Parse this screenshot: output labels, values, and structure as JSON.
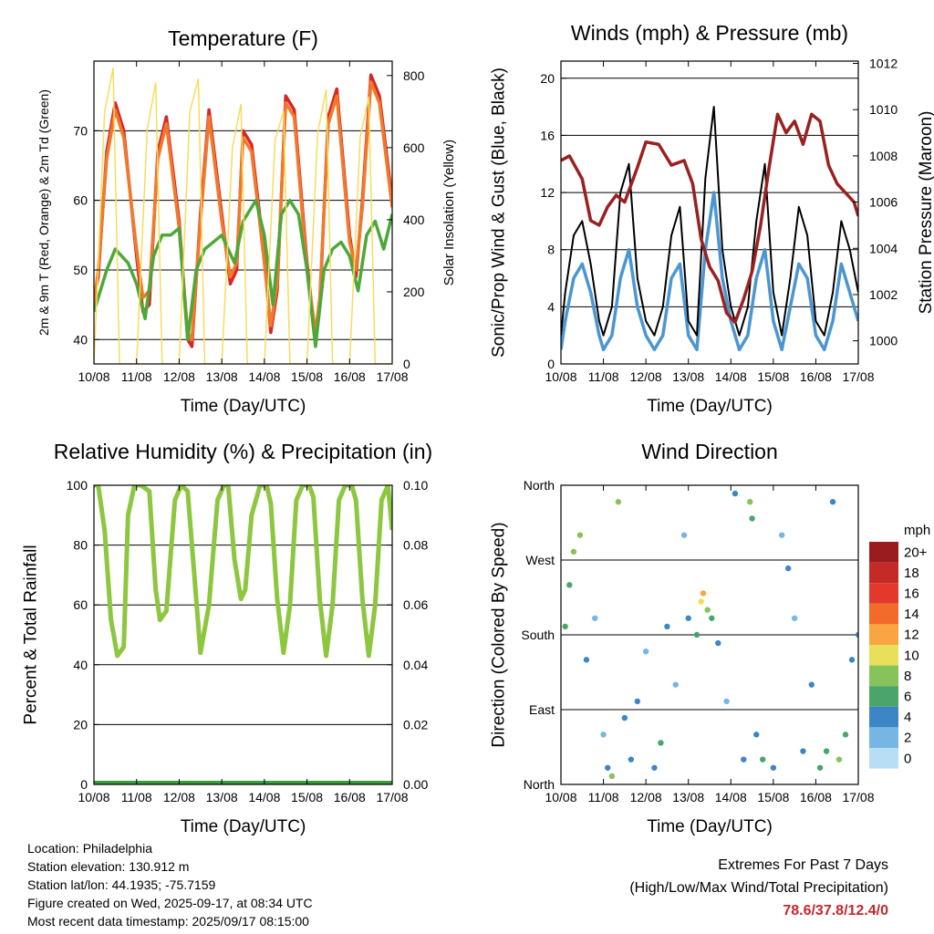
{
  "chart_data": [
    {
      "type": "line",
      "title": "Temperature (F)",
      "xlabel": "Time (Day/UTC)",
      "ylabel": "2m & 9m T (Red, Orange) & 2m Td (Green)",
      "ylabel_right": "Solar Insolation (Yellow)",
      "x_ticks": [
        "10/08",
        "11/08",
        "12/08",
        "13/08",
        "14/08",
        "15/08",
        "16/08",
        "17/08"
      ],
      "xlim": [
        0,
        7
      ],
      "ylim": [
        36.5,
        80
      ],
      "y_ticks": [
        40,
        50,
        60,
        70
      ],
      "ylim_right": [
        0,
        840
      ],
      "y_ticks_right": [
        0,
        200,
        400,
        600,
        800
      ],
      "grid": true,
      "series": [
        {
          "color": "#d92626",
          "x": [
            0,
            0.1,
            0.3,
            0.5,
            0.7,
            1.0,
            1.15,
            1.3,
            1.5,
            1.7,
            2.0,
            2.2,
            2.3,
            2.5,
            2.7,
            3.0,
            3.2,
            3.35,
            3.5,
            3.7,
            4.0,
            4.15,
            4.3,
            4.5,
            4.7,
            5.0,
            5.2,
            5.3,
            5.5,
            5.7,
            6.0,
            6.15,
            6.3,
            6.5,
            6.7,
            7.0
          ],
          "values": [
            46,
            49,
            67,
            74,
            70,
            52,
            44,
            45,
            67,
            72,
            57,
            40,
            39,
            58,
            73,
            58,
            48,
            50,
            70,
            68,
            52,
            41,
            47,
            75,
            73,
            51,
            40,
            45,
            72,
            76,
            55,
            49,
            60,
            78,
            75,
            60
          ]
        },
        {
          "color": "#f07a2a",
          "x": [
            0,
            0.1,
            0.3,
            0.5,
            0.7,
            1.0,
            1.15,
            1.3,
            1.5,
            1.7,
            2.0,
            2.2,
            2.3,
            2.5,
            2.7,
            3.0,
            3.2,
            3.35,
            3.5,
            3.7,
            4.0,
            4.15,
            4.3,
            4.5,
            4.7,
            5.0,
            5.2,
            5.3,
            5.5,
            5.7,
            6.0,
            6.15,
            6.3,
            6.5,
            6.7,
            7.0
          ],
          "values": [
            45,
            50,
            66,
            73,
            69,
            53,
            46,
            47,
            66,
            71,
            56,
            41,
            40,
            57,
            72,
            57,
            49,
            51,
            69,
            67,
            51,
            42,
            48,
            74,
            72,
            50,
            41,
            46,
            71,
            75,
            54,
            50,
            59,
            77,
            74,
            59
          ]
        },
        {
          "color": "#4ca839",
          "x": [
            0,
            0.3,
            0.5,
            0.8,
            1.0,
            1.2,
            1.4,
            1.6,
            1.8,
            2.0,
            2.2,
            2.4,
            2.6,
            2.8,
            3.0,
            3.3,
            3.5,
            3.8,
            4.0,
            4.2,
            4.4,
            4.6,
            4.8,
            5.0,
            5.2,
            5.4,
            5.6,
            5.8,
            6.0,
            6.2,
            6.4,
            6.6,
            6.8,
            7.0
          ],
          "values": [
            44,
            50,
            53,
            51,
            48,
            43,
            52,
            55,
            55,
            56,
            40,
            50,
            53,
            54,
            55,
            51,
            57,
            60,
            55,
            45,
            58,
            60,
            58,
            50,
            39,
            50,
            53,
            54,
            52,
            47,
            55,
            57,
            53,
            58
          ]
        },
        {
          "color": "#f7dc5a",
          "x": [
            0.0,
            0.25,
            0.45,
            0.6,
            1.0,
            1.25,
            1.45,
            1.6,
            2.0,
            2.25,
            2.45,
            2.6,
            3.0,
            3.25,
            3.45,
            3.6,
            4.0,
            4.25,
            4.45,
            4.6,
            5.0,
            5.25,
            5.45,
            5.6,
            6.0,
            6.25,
            6.45,
            6.6,
            7.0
          ],
          "values": [
            0,
            700,
            820,
            0,
            0,
            650,
            780,
            0,
            0,
            700,
            790,
            0,
            0,
            600,
            720,
            0,
            0,
            620,
            700,
            0,
            0,
            640,
            760,
            0,
            0,
            630,
            740,
            0,
            0
          ]
        }
      ]
    },
    {
      "type": "line",
      "title": "Winds (mph) & Pressure (mb)",
      "xlabel": "Time (Day/UTC)",
      "ylabel": "Sonic/Prop Wind & Gust (Blue, Black)",
      "ylabel_right": "Station Pressure (Maroon)",
      "x_ticks": [
        "10/08",
        "11/08",
        "12/08",
        "13/08",
        "14/08",
        "15/08",
        "16/08",
        "17/08"
      ],
      "xlim": [
        0,
        7
      ],
      "ylim": [
        0,
        21.2
      ],
      "y_ticks": [
        0,
        4,
        8,
        12,
        16,
        20
      ],
      "ylim_right": [
        999,
        1012.1
      ],
      "y_ticks_right": [
        1000,
        1002,
        1004,
        1006,
        1008,
        1010,
        1012
      ],
      "grid": true,
      "series": [
        {
          "color": "#4b96d2",
          "x": [
            0,
            0.1,
            0.3,
            0.5,
            0.7,
            0.9,
            1.0,
            1.2,
            1.4,
            1.6,
            1.8,
            2.0,
            2.2,
            2.4,
            2.6,
            2.8,
            3.0,
            3.2,
            3.4,
            3.6,
            3.8,
            4.0,
            4.2,
            4.4,
            4.6,
            4.8,
            5.0,
            5.2,
            5.4,
            5.6,
            5.8,
            6.0,
            6.2,
            6.4,
            6.6,
            6.8,
            7.0
          ],
          "values": [
            1,
            3,
            6,
            7,
            5,
            2,
            1,
            2,
            6,
            8,
            4,
            2,
            1,
            2,
            6,
            7,
            2,
            1,
            8,
            12,
            6,
            3,
            1,
            2,
            6,
            8,
            3,
            1,
            4,
            7,
            6,
            2,
            1,
            3,
            7,
            5,
            3
          ]
        },
        {
          "color": "#000000",
          "x": [
            0,
            0.1,
            0.3,
            0.5,
            0.7,
            0.9,
            1.0,
            1.2,
            1.4,
            1.6,
            1.8,
            2.0,
            2.2,
            2.4,
            2.6,
            2.8,
            3.0,
            3.2,
            3.4,
            3.6,
            3.8,
            4.0,
            4.2,
            4.4,
            4.6,
            4.8,
            5.0,
            5.2,
            5.4,
            5.6,
            5.8,
            6.0,
            6.2,
            6.4,
            6.6,
            6.8,
            7.0
          ],
          "values": [
            2,
            5,
            9,
            10,
            7,
            3,
            2,
            4,
            12,
            14,
            6,
            3,
            2,
            4,
            9,
            11,
            3,
            2,
            13,
            18,
            8,
            4,
            2,
            4,
            10,
            14,
            5,
            2,
            6,
            11,
            9,
            3,
            2,
            5,
            10,
            8,
            5
          ]
        },
        {
          "color": "#9b2020",
          "axis": "right",
          "x": [
            0,
            0.2,
            0.5,
            0.7,
            0.9,
            1.1,
            1.3,
            1.5,
            1.8,
            2.0,
            2.3,
            2.6,
            2.9,
            3.1,
            3.3,
            3.5,
            3.7,
            3.9,
            4.1,
            4.3,
            4.5,
            4.7,
            4.9,
            5.1,
            5.3,
            5.5,
            5.7,
            5.9,
            6.1,
            6.3,
            6.5,
            6.7,
            6.9,
            7.0
          ],
          "values": [
            1007.8,
            1008,
            1007,
            1005.2,
            1005,
            1005.8,
            1006.3,
            1006,
            1007.5,
            1008.6,
            1008.5,
            1007.6,
            1007.8,
            1006.8,
            1004.4,
            1003.2,
            1002.6,
            1001.2,
            1000.8,
            1001.8,
            1003,
            1005,
            1007.5,
            1009.8,
            1009,
            1009.5,
            1008.5,
            1009.8,
            1009.5,
            1007.6,
            1006.8,
            1006.4,
            1006,
            1005.4
          ]
        }
      ]
    },
    {
      "type": "line",
      "title": "Relative Humidity (%) & Precipitation (in)",
      "xlabel": "Time (Day/UTC)",
      "ylabel": "Percent & Total Rainfall",
      "x_ticks": [
        "10/08",
        "11/08",
        "12/08",
        "13/08",
        "14/08",
        "15/08",
        "16/08",
        "17/08"
      ],
      "xlim": [
        0,
        7
      ],
      "ylim": [
        0,
        100
      ],
      "y_ticks": [
        0,
        20,
        40,
        60,
        80,
        100
      ],
      "ylim_right": [
        0,
        0.1
      ],
      "y_ticks_right": [
        "0.00",
        "0.02",
        "0.04",
        "0.06",
        "0.08",
        "0.10"
      ],
      "grid": true,
      "series": [
        {
          "color": "#8dc63f",
          "x": [
            0,
            0.1,
            0.25,
            0.4,
            0.55,
            0.7,
            0.8,
            0.95,
            1.1,
            1.3,
            1.45,
            1.55,
            1.7,
            1.9,
            2.05,
            2.2,
            2.4,
            2.5,
            2.7,
            2.9,
            3.05,
            3.15,
            3.3,
            3.45,
            3.55,
            3.7,
            3.9,
            4.05,
            4.15,
            4.3,
            4.45,
            4.6,
            4.75,
            4.9,
            5.05,
            5.15,
            5.3,
            5.45,
            5.6,
            5.75,
            5.9,
            6.05,
            6.15,
            6.3,
            6.45,
            6.6,
            6.75,
            6.9,
            7.0
          ],
          "values": [
            100,
            100,
            85,
            55,
            43,
            46,
            90,
            100,
            100,
            98,
            65,
            55,
            58,
            95,
            100,
            98,
            62,
            44,
            60,
            95,
            100,
            100,
            75,
            62,
            65,
            90,
            100,
            100,
            94,
            62,
            44,
            60,
            95,
            100,
            100,
            96,
            62,
            43,
            60,
            95,
            100,
            100,
            95,
            62,
            43,
            60,
            95,
            100,
            85
          ]
        },
        {
          "color": "#3a9e3a",
          "x": [
            0,
            7
          ],
          "values": [
            0,
            0
          ]
        }
      ]
    },
    {
      "type": "scatter",
      "title": "Wind Direction",
      "xlabel": "Time (Day/UTC)",
      "ylabel": "Direction (Colored By Speed)",
      "x_ticks": [
        "10/08",
        "11/08",
        "12/08",
        "13/08",
        "14/08",
        "15/08",
        "16/08",
        "17/08"
      ],
      "xlim": [
        0,
        7
      ],
      "ylim": [
        0,
        360
      ],
      "y_ticks": [
        0,
        90,
        180,
        270,
        360
      ],
      "y_tick_labels": [
        "North",
        "East",
        "South",
        "West",
        "North"
      ],
      "grid": true,
      "legend": {
        "title": "mph",
        "position": "right",
        "labels": [
          "20+",
          "18",
          "16",
          "14",
          "12",
          "10",
          "8",
          "6",
          "4",
          "2",
          "0"
        ],
        "colors": [
          "#9a1c1f",
          "#c42a26",
          "#e3382b",
          "#f26b2a",
          "#f9a541",
          "#e8e05a",
          "#86c35a",
          "#4aa56a",
          "#3d86c6",
          "#77b6e3",
          "#b7def5"
        ]
      },
      "series": [
        {
          "x": [
            0.1,
            0.2,
            0.3,
            0.45,
            0.6,
            0.8,
            1.0,
            1.1,
            1.2,
            1.35,
            1.5,
            1.65,
            1.8,
            2.0,
            2.2,
            2.35,
            2.5,
            2.7,
            2.9,
            3.0,
            3.2,
            3.3,
            3.35,
            3.45,
            3.55,
            3.7,
            3.9,
            4.1,
            4.3,
            4.45,
            4.5,
            4.6,
            4.75,
            5.0,
            5.2,
            5.35,
            5.5,
            5.7,
            5.9,
            6.1,
            6.25,
            6.4,
            6.55,
            6.7,
            6.85,
            7.0
          ],
          "direction": [
            190,
            240,
            280,
            300,
            150,
            200,
            60,
            20,
            10,
            340,
            80,
            30,
            100,
            160,
            20,
            50,
            190,
            120,
            300,
            200,
            180,
            220,
            230,
            210,
            200,
            170,
            100,
            350,
            30,
            340,
            320,
            60,
            30,
            20,
            300,
            260,
            200,
            40,
            120,
            20,
            40,
            340,
            30,
            60,
            150,
            180
          ],
          "speed": [
            6,
            6,
            7,
            7,
            3,
            2,
            2,
            4,
            8,
            7,
            3,
            3,
            4,
            2,
            3,
            5,
            3,
            2,
            2,
            4,
            5,
            9,
            12,
            8,
            6,
            3,
            2,
            3,
            4,
            7,
            6,
            4,
            5,
            3,
            2,
            4,
            2,
            3,
            4,
            5,
            6,
            3,
            7,
            6,
            3,
            4
          ]
        }
      ]
    }
  ],
  "info": {
    "location": "Location: Philadelphia",
    "elevation": "Station elevation: 130.912 m",
    "latlon": "Station lat/lon: 44.1935; -75.7159",
    "created": "Figure created on Wed, 2025-09-17, at 08:34 UTC",
    "recent": "Most recent data timestamp: 2025/09/17 08:15:00"
  },
  "extremes": {
    "title": "Extremes For Past 7 Days",
    "subtitle": "(High/Low/Max Wind/Total Precipitation)",
    "values": "78.6/37.8/12.4/0"
  }
}
